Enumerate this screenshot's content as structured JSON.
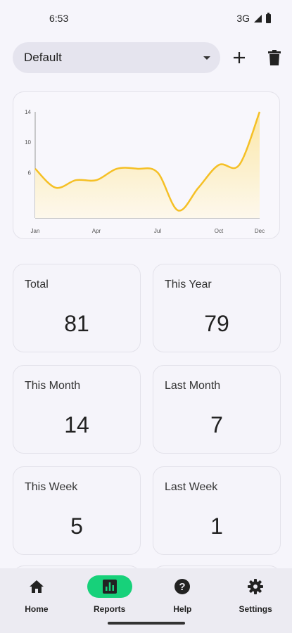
{
  "status": {
    "time": "6:53",
    "network": "3G"
  },
  "toolbar": {
    "dropdown_value": "Default",
    "add_label": "+",
    "delete_icon": "trash-icon"
  },
  "chart_data": {
    "type": "area",
    "x": [
      "Jan",
      "Feb",
      "Mar",
      "Apr",
      "May",
      "Jun",
      "Jul",
      "Aug",
      "Sep",
      "Oct",
      "Nov",
      "Dec"
    ],
    "y": [
      6.5,
      4.0,
      5.0,
      5.0,
      6.5,
      6.5,
      6.0,
      1.0,
      4.0,
      7.0,
      7.0,
      14.0
    ],
    "x_tick_labels": [
      "Jan",
      "Apr",
      "Jul",
      "Oct",
      "Dec"
    ],
    "y_ticks": [
      14,
      10,
      6
    ],
    "ylim": [
      0,
      14
    ],
    "grid": false,
    "colors": {
      "line": "#f5c026",
      "fill_top": "#fbe7a8",
      "fill_bottom": "#fdf8ec"
    }
  },
  "stats": [
    {
      "label": "Total",
      "value": "81"
    },
    {
      "label": "This Year",
      "value": "79"
    },
    {
      "label": "This Month",
      "value": "14"
    },
    {
      "label": "Last Month",
      "value": "7"
    },
    {
      "label": "This Week",
      "value": "5"
    },
    {
      "label": "Last Week",
      "value": "1"
    }
  ],
  "nav": [
    {
      "label": "Home",
      "icon": "home-icon",
      "active": false
    },
    {
      "label": "Reports",
      "icon": "reports-icon",
      "active": true
    },
    {
      "label": "Help",
      "icon": "help-icon",
      "active": false
    },
    {
      "label": "Settings",
      "icon": "gear-icon",
      "active": false
    }
  ]
}
